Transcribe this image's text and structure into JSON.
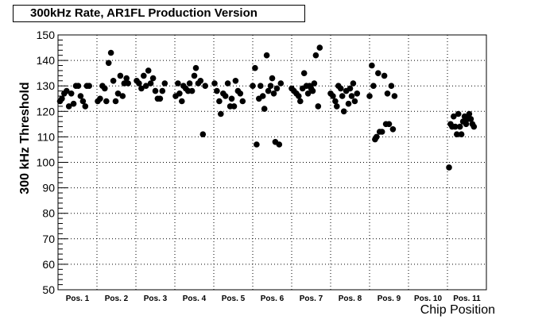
{
  "chart_data": {
    "type": "scatter",
    "title": "300kHz Rate, AR1FL Production Version",
    "xlabel": "Chip Position",
    "ylabel": "300 kHz Threshold",
    "ylim": [
      50,
      150
    ],
    "yticks": [
      50,
      60,
      70,
      80,
      90,
      100,
      110,
      120,
      130,
      140,
      150
    ],
    "grid": true,
    "categories": [
      "Pos. 1",
      "Pos. 2",
      "Pos. 3",
      "Pos. 4",
      "Pos. 5",
      "Pos. 6",
      "Pos. 7",
      "Pos. 8",
      "Pos. 9",
      "Pos. 10",
      "Pos. 11"
    ],
    "xlim": [
      0.5,
      11.5
    ],
    "series": [
      {
        "marker_color": "#000000",
        "points": [
          {
            "x": 0.55,
            "y": 124
          },
          {
            "x": 0.6,
            "y": 125
          },
          {
            "x": 0.66,
            "y": 127
          },
          {
            "x": 0.72,
            "y": 128
          },
          {
            "x": 0.78,
            "y": 122
          },
          {
            "x": 0.84,
            "y": 127
          },
          {
            "x": 0.9,
            "y": 123
          },
          {
            "x": 0.96,
            "y": 130
          },
          {
            "x": 1.02,
            "y": 130
          },
          {
            "x": 1.08,
            "y": 126
          },
          {
            "x": 1.14,
            "y": 124
          },
          {
            "x": 1.2,
            "y": 122
          },
          {
            "x": 1.24,
            "y": 130
          },
          {
            "x": 1.3,
            "y": 130
          },
          {
            "x": 1.52,
            "y": 124
          },
          {
            "x": 1.58,
            "y": 125
          },
          {
            "x": 1.64,
            "y": 130
          },
          {
            "x": 1.7,
            "y": 129
          },
          {
            "x": 1.74,
            "y": 124
          },
          {
            "x": 1.8,
            "y": 139
          },
          {
            "x": 1.86,
            "y": 143
          },
          {
            "x": 1.92,
            "y": 132
          },
          {
            "x": 1.98,
            "y": 124
          },
          {
            "x": 2.04,
            "y": 127
          },
          {
            "x": 2.1,
            "y": 134
          },
          {
            "x": 2.16,
            "y": 126
          },
          {
            "x": 2.2,
            "y": 131
          },
          {
            "x": 2.26,
            "y": 133
          },
          {
            "x": 2.3,
            "y": 131
          },
          {
            "x": 2.52,
            "y": 132
          },
          {
            "x": 2.58,
            "y": 131
          },
          {
            "x": 2.64,
            "y": 129
          },
          {
            "x": 2.7,
            "y": 134
          },
          {
            "x": 2.76,
            "y": 130
          },
          {
            "x": 2.82,
            "y": 136
          },
          {
            "x": 2.88,
            "y": 131
          },
          {
            "x": 2.94,
            "y": 133
          },
          {
            "x": 3.0,
            "y": 128
          },
          {
            "x": 3.06,
            "y": 125
          },
          {
            "x": 3.12,
            "y": 125
          },
          {
            "x": 3.18,
            "y": 128
          },
          {
            "x": 3.24,
            "y": 131
          },
          {
            "x": 3.52,
            "y": 126
          },
          {
            "x": 3.58,
            "y": 131
          },
          {
            "x": 3.62,
            "y": 127
          },
          {
            "x": 3.68,
            "y": 124
          },
          {
            "x": 3.72,
            "y": 130
          },
          {
            "x": 3.78,
            "y": 129
          },
          {
            "x": 3.84,
            "y": 128
          },
          {
            "x": 3.88,
            "y": 131
          },
          {
            "x": 3.94,
            "y": 128
          },
          {
            "x": 4.0,
            "y": 134
          },
          {
            "x": 4.04,
            "y": 137
          },
          {
            "x": 4.1,
            "y": 131
          },
          {
            "x": 4.16,
            "y": 132
          },
          {
            "x": 4.22,
            "y": 111
          },
          {
            "x": 4.28,
            "y": 130
          },
          {
            "x": 4.52,
            "y": 131
          },
          {
            "x": 4.58,
            "y": 128
          },
          {
            "x": 4.64,
            "y": 124
          },
          {
            "x": 4.68,
            "y": 119
          },
          {
            "x": 4.74,
            "y": 127
          },
          {
            "x": 4.8,
            "y": 126
          },
          {
            "x": 4.86,
            "y": 131
          },
          {
            "x": 4.92,
            "y": 122
          },
          {
            "x": 4.96,
            "y": 125
          },
          {
            "x": 5.02,
            "y": 122
          },
          {
            "x": 5.06,
            "y": 132
          },
          {
            "x": 5.12,
            "y": 128
          },
          {
            "x": 5.18,
            "y": 127
          },
          {
            "x": 5.24,
            "y": 124
          },
          {
            "x": 5.5,
            "y": 130
          },
          {
            "x": 5.56,
            "y": 137
          },
          {
            "x": 5.6,
            "y": 107
          },
          {
            "x": 5.66,
            "y": 125
          },
          {
            "x": 5.7,
            "y": 130
          },
          {
            "x": 5.76,
            "y": 126
          },
          {
            "x": 5.8,
            "y": 121
          },
          {
            "x": 5.86,
            "y": 142
          },
          {
            "x": 5.9,
            "y": 128
          },
          {
            "x": 5.96,
            "y": 130
          },
          {
            "x": 6.0,
            "y": 133
          },
          {
            "x": 6.04,
            "y": 127
          },
          {
            "x": 6.08,
            "y": 108
          },
          {
            "x": 6.12,
            "y": 129
          },
          {
            "x": 6.18,
            "y": 107
          },
          {
            "x": 6.22,
            "y": 131
          },
          {
            "x": 6.5,
            "y": 129
          },
          {
            "x": 6.56,
            "y": 128
          },
          {
            "x": 6.62,
            "y": 127
          },
          {
            "x": 6.68,
            "y": 126
          },
          {
            "x": 6.72,
            "y": 124
          },
          {
            "x": 6.78,
            "y": 129
          },
          {
            "x": 6.82,
            "y": 135
          },
          {
            "x": 6.88,
            "y": 130
          },
          {
            "x": 6.92,
            "y": 127
          },
          {
            "x": 6.96,
            "y": 130
          },
          {
            "x": 7.0,
            "y": 129
          },
          {
            "x": 7.04,
            "y": 128
          },
          {
            "x": 7.08,
            "y": 131
          },
          {
            "x": 7.12,
            "y": 142
          },
          {
            "x": 7.18,
            "y": 122
          },
          {
            "x": 7.22,
            "y": 145
          },
          {
            "x": 7.5,
            "y": 127
          },
          {
            "x": 7.56,
            "y": 126
          },
          {
            "x": 7.62,
            "y": 124
          },
          {
            "x": 7.66,
            "y": 122
          },
          {
            "x": 7.7,
            "y": 130
          },
          {
            "x": 7.76,
            "y": 129
          },
          {
            "x": 7.8,
            "y": 126
          },
          {
            "x": 7.84,
            "y": 120
          },
          {
            "x": 7.9,
            "y": 128
          },
          {
            "x": 7.96,
            "y": 123
          },
          {
            "x": 8.0,
            "y": 129
          },
          {
            "x": 8.04,
            "y": 126
          },
          {
            "x": 8.08,
            "y": 131
          },
          {
            "x": 8.12,
            "y": 124
          },
          {
            "x": 8.18,
            "y": 127
          },
          {
            "x": 8.5,
            "y": 126
          },
          {
            "x": 8.56,
            "y": 138
          },
          {
            "x": 8.6,
            "y": 130
          },
          {
            "x": 8.64,
            "y": 109
          },
          {
            "x": 8.68,
            "y": 110
          },
          {
            "x": 8.72,
            "y": 135
          },
          {
            "x": 8.76,
            "y": 112
          },
          {
            "x": 8.82,
            "y": 112
          },
          {
            "x": 8.88,
            "y": 134
          },
          {
            "x": 8.92,
            "y": 115
          },
          {
            "x": 8.96,
            "y": 127
          },
          {
            "x": 9.0,
            "y": 115
          },
          {
            "x": 9.06,
            "y": 130
          },
          {
            "x": 9.1,
            "y": 113
          },
          {
            "x": 9.14,
            "y": 126
          },
          {
            "x": 10.54,
            "y": 98
          },
          {
            "x": 10.58,
            "y": 115
          },
          {
            "x": 10.62,
            "y": 114
          },
          {
            "x": 10.66,
            "y": 118
          },
          {
            "x": 10.7,
            "y": 114
          },
          {
            "x": 10.74,
            "y": 111
          },
          {
            "x": 10.78,
            "y": 119
          },
          {
            "x": 10.82,
            "y": 114
          },
          {
            "x": 10.86,
            "y": 111
          },
          {
            "x": 10.9,
            "y": 116
          },
          {
            "x": 10.94,
            "y": 118
          },
          {
            "x": 10.98,
            "y": 115
          },
          {
            "x": 11.02,
            "y": 117
          },
          {
            "x": 11.06,
            "y": 119
          },
          {
            "x": 11.1,
            "y": 117
          },
          {
            "x": 11.14,
            "y": 115
          },
          {
            "x": 11.18,
            "y": 114
          }
        ]
      }
    ]
  }
}
